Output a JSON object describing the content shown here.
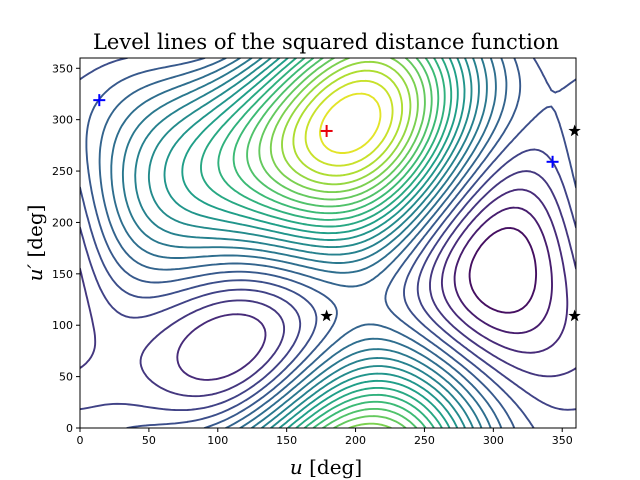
{
  "chart_data": {
    "type": "contour",
    "title": "Level lines of the squared distance function",
    "xlabel_var": "u",
    "xlabel_unit": " [deg]",
    "ylabel_var": "u′",
    "ylabel_unit": " [deg]",
    "xlim": [
      0,
      360
    ],
    "ylim": [
      0,
      360
    ],
    "xticks": [
      0,
      50,
      100,
      150,
      200,
      250,
      300,
      350
    ],
    "yticks": [
      0,
      50,
      100,
      150,
      200,
      250,
      300,
      350
    ],
    "grid": false,
    "colormap": "viridis",
    "maximum_marker": {
      "u": 179,
      "u_prime": 289,
      "marker": "+",
      "color": "#e8000b"
    },
    "minimum_markers": [
      {
        "u": 14,
        "u_prime": 319,
        "marker": "+",
        "color": "#0000ff"
      },
      {
        "u": 343,
        "u_prime": 259,
        "marker": "+",
        "color": "#0000ff"
      }
    ],
    "saddle_markers": [
      {
        "u": 179,
        "u_prime": 109,
        "marker": "star",
        "color": "#000000"
      },
      {
        "u": 359,
        "u_prime": 289,
        "marker": "star",
        "color": "#000000"
      },
      {
        "u": 359,
        "u_prime": 109,
        "marker": "star",
        "color": "#000000"
      }
    ]
  }
}
